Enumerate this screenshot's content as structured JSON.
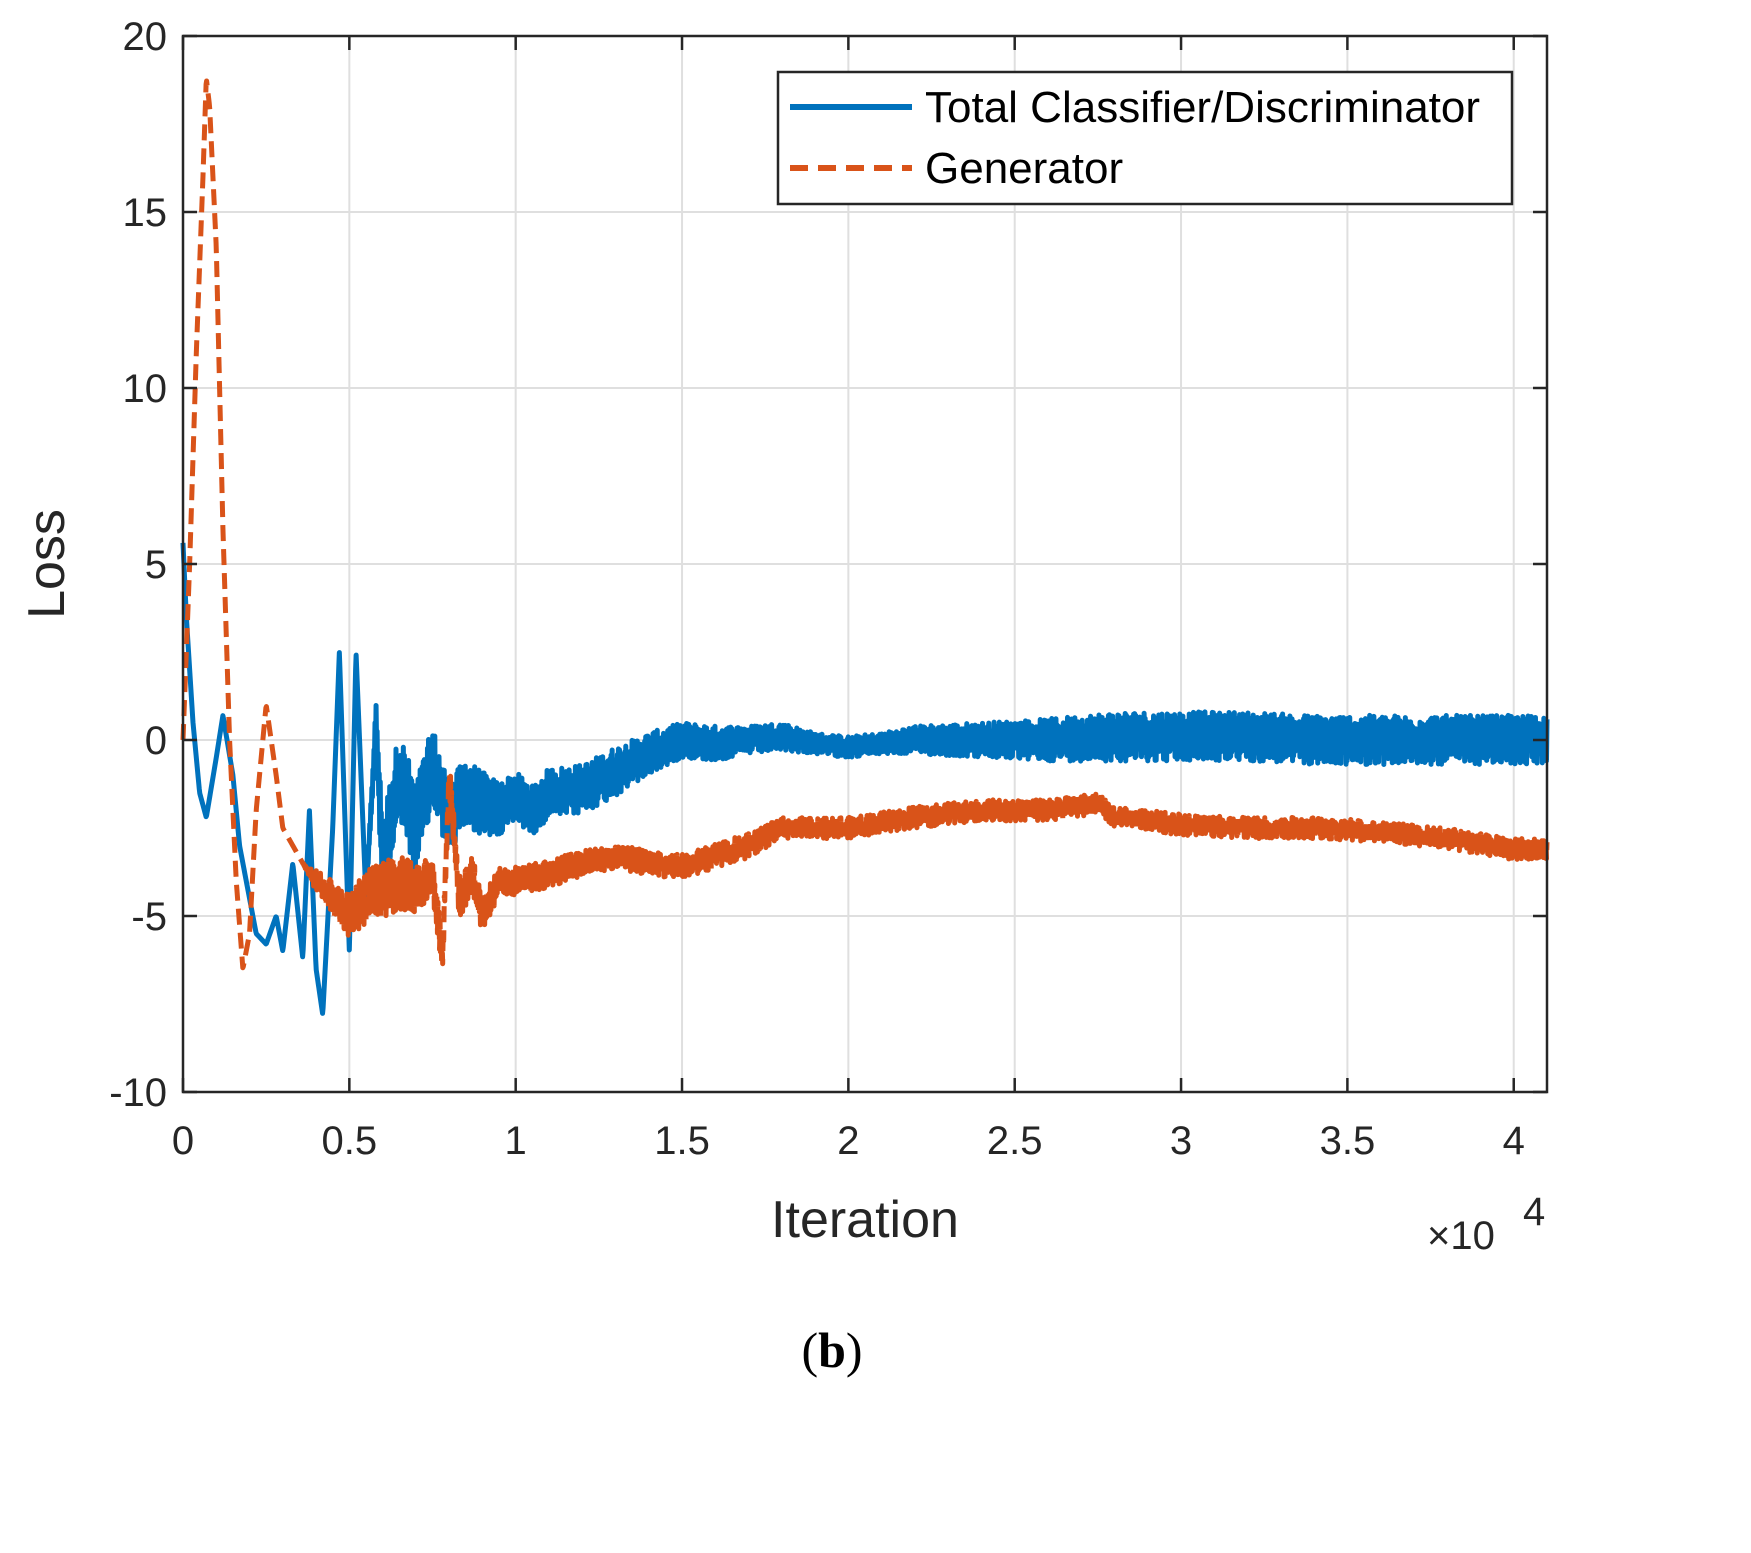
{
  "colors": {
    "series1": "#0072BD",
    "series2": "#D95319",
    "grid": "#DFDFDF",
    "axis": "#262626"
  },
  "chart_data": {
    "type": "line",
    "title": "",
    "xlabel": "Iteration",
    "ylabel": "Loss",
    "x_exponent_label": "×10",
    "x_exponent_power": "4",
    "xlim": [
      0,
      4.1
    ],
    "ylim": [
      -10,
      20
    ],
    "grid": true,
    "legend_position": "top-right",
    "xticks": [
      0,
      0.5,
      1,
      1.5,
      2,
      2.5,
      3,
      3.5,
      4
    ],
    "xtick_labels": [
      "0",
      "0.5",
      "1",
      "1.5",
      "2",
      "2.5",
      "3",
      "3.5",
      "4"
    ],
    "yticks": [
      -10,
      -5,
      0,
      5,
      10,
      15,
      20
    ],
    "ytick_labels": [
      "-10",
      "-5",
      "0",
      "5",
      "10",
      "15",
      "20"
    ],
    "x_units_note": "x values in units of 10^4 iterations",
    "series": [
      {
        "name": "Total Classifier/Discriminator",
        "style": "solid",
        "color_key": "series1",
        "x": [
          0,
          0.01,
          0.03,
          0.05,
          0.07,
          0.1,
          0.12,
          0.15,
          0.17,
          0.2,
          0.22,
          0.25,
          0.28,
          0.3,
          0.33,
          0.36,
          0.38,
          0.4,
          0.42,
          0.45,
          0.47,
          0.5,
          0.52,
          0.55,
          0.58,
          0.6,
          0.65,
          0.7,
          0.75,
          0.8,
          0.85,
          0.9,
          0.95,
          1.0,
          1.05,
          1.1,
          1.2,
          1.3,
          1.4,
          1.5,
          1.6,
          1.7,
          1.8,
          1.9,
          2.0,
          2.1,
          2.2,
          2.4,
          2.6,
          2.8,
          3.0,
          3.2,
          3.4,
          3.6,
          3.8,
          4.0,
          4.1
        ],
        "y": [
          5.6,
          3.5,
          0.5,
          -1.5,
          -2.2,
          -0.5,
          0.7,
          -1.0,
          -3.0,
          -4.5,
          -5.5,
          -5.8,
          -5.0,
          -6.0,
          -3.5,
          -6.2,
          -2.0,
          -6.5,
          -7.8,
          -2.5,
          2.5,
          -6.0,
          2.5,
          -4.5,
          0.5,
          -3.5,
          -1.0,
          -2.5,
          -0.8,
          -2.2,
          -1.5,
          -1.8,
          -2.0,
          -1.6,
          -2.0,
          -1.5,
          -1.4,
          -0.9,
          -0.4,
          0.0,
          -0.1,
          0.0,
          0.1,
          -0.1,
          -0.2,
          -0.1,
          0.0,
          0.0,
          0.0,
          0.1,
          0.1,
          0.1,
          0.0,
          0.0,
          0.0,
          0.0,
          0.0
        ],
        "noise": [
          0,
          0,
          0,
          0,
          0,
          0,
          0,
          0,
          0,
          0,
          0,
          0,
          0,
          0,
          0,
          0,
          0,
          0,
          0,
          0,
          0,
          0,
          0,
          0,
          0.6,
          1.2,
          1.3,
          1.3,
          1.2,
          1.0,
          1.0,
          0.9,
          0.8,
          0.7,
          0.7,
          0.7,
          0.7,
          0.7,
          0.6,
          0.5,
          0.5,
          0.4,
          0.4,
          0.3,
          0.3,
          0.3,
          0.4,
          0.5,
          0.6,
          0.7,
          0.7,
          0.7,
          0.7,
          0.7,
          0.7,
          0.7,
          0.7
        ]
      },
      {
        "name": "Generator",
        "style": "dashed",
        "color_key": "series2",
        "x": [
          0,
          0.02,
          0.04,
          0.06,
          0.07,
          0.08,
          0.1,
          0.12,
          0.14,
          0.16,
          0.18,
          0.2,
          0.22,
          0.25,
          0.28,
          0.3,
          0.33,
          0.36,
          0.4,
          0.45,
          0.5,
          0.55,
          0.6,
          0.65,
          0.7,
          0.75,
          0.78,
          0.8,
          0.83,
          0.87,
          0.9,
          0.95,
          1.0,
          1.1,
          1.2,
          1.3,
          1.4,
          1.5,
          1.6,
          1.7,
          1.8,
          1.9,
          2.0,
          2.2,
          2.4,
          2.6,
          2.75,
          2.8,
          3.0,
          3.2,
          3.4,
          3.6,
          3.8,
          4.0,
          4.1
        ],
        "y": [
          0.0,
          5.0,
          11.0,
          16.0,
          18.8,
          18.0,
          14.0,
          6.0,
          0.0,
          -4.0,
          -6.5,
          -5.5,
          -2.0,
          1.0,
          -1.0,
          -2.5,
          -3.0,
          -3.5,
          -4.0,
          -4.5,
          -5.0,
          -4.5,
          -4.3,
          -4.0,
          -4.2,
          -3.8,
          -6.2,
          -1.0,
          -4.5,
          -3.8,
          -5.0,
          -4.0,
          -4.0,
          -3.8,
          -3.5,
          -3.3,
          -3.5,
          -3.6,
          -3.3,
          -3.0,
          -2.5,
          -2.5,
          -2.5,
          -2.2,
          -2.0,
          -2.0,
          -1.8,
          -2.2,
          -2.4,
          -2.5,
          -2.5,
          -2.6,
          -2.8,
          -3.1,
          -3.1
        ],
        "noise": [
          0,
          0,
          0,
          0,
          0,
          0,
          0,
          0,
          0,
          0,
          0,
          0,
          0,
          0,
          0,
          0,
          0,
          0,
          0.3,
          0.5,
          0.6,
          0.8,
          0.8,
          0.8,
          0.7,
          0.6,
          0.5,
          0.5,
          0.6,
          0.5,
          0.5,
          0.4,
          0.4,
          0.4,
          0.35,
          0.35,
          0.35,
          0.35,
          0.35,
          0.35,
          0.3,
          0.3,
          0.3,
          0.3,
          0.3,
          0.3,
          0.3,
          0.3,
          0.3,
          0.3,
          0.3,
          0.3,
          0.3,
          0.3,
          0.3
        ]
      }
    ]
  },
  "caption": {
    "open": "(",
    "letter": "b",
    "close": ")"
  }
}
